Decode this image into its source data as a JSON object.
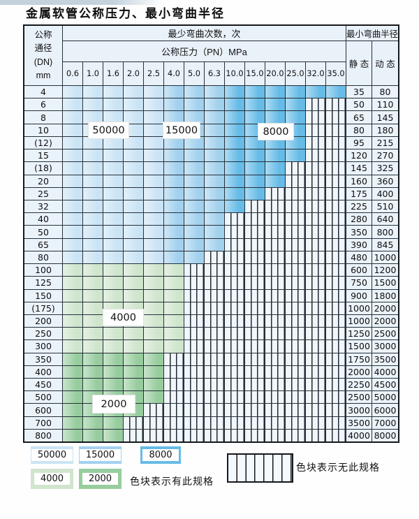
{
  "title": "金属软管公称压力、最小弯曲半径",
  "table": {
    "header": {
      "dn_lines": [
        "公称",
        "通径",
        "(DN)",
        "mm"
      ],
      "bend_times": "最少弯曲次数，次",
      "pressure_label": "公称压力（PN）MPa",
      "pressures": [
        "0.6",
        "1.0",
        "1.6",
        "2.0",
        "2.5",
        "4.0",
        "5.0",
        "6.3",
        "10.0",
        "15.0",
        "20.0",
        "25.0",
        "32.0",
        "35.0"
      ],
      "radius_label": "最小弯曲半径",
      "static_label": "静 态",
      "dynamic_label": "动 态"
    },
    "zone_labels": [
      "50000",
      "15000",
      "8000",
      "4000",
      "2000"
    ],
    "rows": [
      {
        "dn": "4",
        "max_pn": "35.0",
        "group": "blue",
        "static": "35",
        "dynamic": "80"
      },
      {
        "dn": "6",
        "max_pn": "25.0",
        "group": "blue",
        "static": "50",
        "dynamic": "110"
      },
      {
        "dn": "8",
        "max_pn": "25.0",
        "group": "blue",
        "static": "65",
        "dynamic": "145"
      },
      {
        "dn": "10",
        "max_pn": "25.0",
        "group": "blue",
        "static": "80",
        "dynamic": "180"
      },
      {
        "dn": "(12)",
        "max_pn": "25.0",
        "group": "blue",
        "static": "95",
        "dynamic": "215"
      },
      {
        "dn": "15",
        "max_pn": "25.0",
        "group": "blue",
        "static": "120",
        "dynamic": "270"
      },
      {
        "dn": "(18)",
        "max_pn": "20.0",
        "group": "blue",
        "static": "145",
        "dynamic": "325"
      },
      {
        "dn": "20",
        "max_pn": "20.0",
        "group": "blue",
        "static": "160",
        "dynamic": "360"
      },
      {
        "dn": "25",
        "max_pn": "15.0",
        "group": "blue",
        "static": "175",
        "dynamic": "400"
      },
      {
        "dn": "32",
        "max_pn": "10.0",
        "group": "blue",
        "static": "225",
        "dynamic": "510"
      },
      {
        "dn": "40",
        "max_pn": "6.3",
        "group": "blue",
        "static": "280",
        "dynamic": "640"
      },
      {
        "dn": "50",
        "max_pn": "6.3",
        "group": "blue",
        "static": "350",
        "dynamic": "800"
      },
      {
        "dn": "65",
        "max_pn": "6.3",
        "group": "blue",
        "static": "390",
        "dynamic": "845"
      },
      {
        "dn": "80",
        "max_pn": "5.0",
        "group": "blue",
        "static": "480",
        "dynamic": "1000"
      },
      {
        "dn": "100",
        "max_pn": "4.0",
        "group": "4000",
        "static": "600",
        "dynamic": "1200"
      },
      {
        "dn": "125",
        "max_pn": "4.0",
        "group": "4000",
        "static": "750",
        "dynamic": "1500"
      },
      {
        "dn": "150",
        "max_pn": "4.0",
        "group": "4000",
        "static": "900",
        "dynamic": "1800"
      },
      {
        "dn": "(175)",
        "max_pn": "4.0",
        "group": "4000",
        "static": "1000",
        "dynamic": "2000"
      },
      {
        "dn": "200",
        "max_pn": "4.0",
        "group": "4000",
        "static": "1000",
        "dynamic": "2000"
      },
      {
        "dn": "250",
        "max_pn": "4.0",
        "group": "4000",
        "static": "1250",
        "dynamic": "2500"
      },
      {
        "dn": "300",
        "max_pn": "4.0",
        "group": "4000",
        "static": "1500",
        "dynamic": "3000"
      },
      {
        "dn": "350",
        "max_pn": "2.5",
        "group": "2000",
        "static": "1750",
        "dynamic": "3500"
      },
      {
        "dn": "400",
        "max_pn": "2.5",
        "group": "2000",
        "static": "2000",
        "dynamic": "4000"
      },
      {
        "dn": "450",
        "max_pn": "2.5",
        "group": "2000",
        "static": "2250",
        "dynamic": "4500"
      },
      {
        "dn": "500",
        "max_pn": "2.5",
        "group": "2000",
        "static": "2500",
        "dynamic": "5000"
      },
      {
        "dn": "600",
        "max_pn": "2.0",
        "group": "2000",
        "static": "3000",
        "dynamic": "6000"
      },
      {
        "dn": "700",
        "max_pn": "1.6",
        "group": "2000",
        "static": "3500",
        "dynamic": "7000"
      },
      {
        "dn": "800",
        "max_pn": "1.6",
        "group": "2000",
        "static": "4000",
        "dynamic": "8000"
      }
    ]
  },
  "colors": {
    "blue_50000": "#cbe4f5",
    "blue_15000": "#a2d1ee",
    "blue_8000": "#66bbe7",
    "green_4000": "#cfe5cc",
    "green_2000": "#97cd9e"
  },
  "legend": {
    "swatches": [
      {
        "label": "50000",
        "color": "#cbe4f5"
      },
      {
        "label": "15000",
        "color": "#a2d1ee"
      },
      {
        "label": "8000",
        "color": "#66bbe7"
      },
      {
        "label": "4000",
        "color": "#cfe5cc"
      },
      {
        "label": "2000",
        "color": "#97cd9e"
      }
    ],
    "available_label": "色块表示有此规格",
    "unavailable_label": "色块表示无此规格"
  }
}
